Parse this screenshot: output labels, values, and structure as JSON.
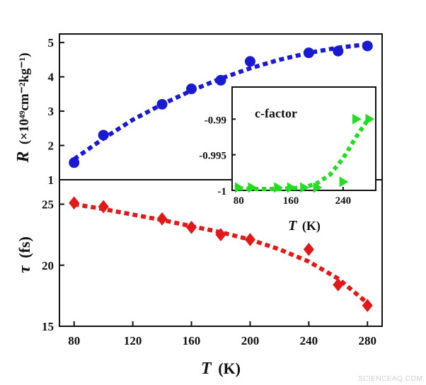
{
  "chart_data": [
    {
      "type": "scatter",
      "panel": "top",
      "ylabel_symbol": "R",
      "ylabel_unit": "(×10⁴⁹cm⁻²kg⁻¹)",
      "xlim": [
        70,
        290
      ],
      "ylim": [
        1,
        5.25
      ],
      "yticks": [
        1,
        2,
        3,
        4,
        5
      ],
      "series": [
        {
          "marker": "circle",
          "color": "#1a1ad0",
          "x": [
            80,
            100,
            140,
            160,
            180,
            200,
            240,
            260,
            280
          ],
          "y": [
            1.5,
            2.3,
            3.2,
            3.65,
            3.9,
            4.45,
            4.7,
            4.75,
            4.9
          ]
        },
        {
          "kind": "dotted fit",
          "color": "#1a1ad0",
          "x": [
            80,
            100,
            120,
            140,
            160,
            180,
            200,
            220,
            240,
            260,
            280
          ],
          "y": [
            1.6,
            2.2,
            2.75,
            3.2,
            3.6,
            3.95,
            4.25,
            4.5,
            4.7,
            4.85,
            4.95
          ]
        }
      ]
    },
    {
      "type": "scatter",
      "panel": "bottom",
      "ylabel_symbol": "τ",
      "ylabel_unit": "(fs)",
      "xlabel_symbol": "T",
      "xlabel_unit": "(K)",
      "xlim": [
        70,
        290
      ],
      "ylim": [
        15,
        27
      ],
      "xticks": [
        80,
        120,
        160,
        200,
        240,
        280
      ],
      "yticks": [
        15,
        20,
        25
      ],
      "series": [
        {
          "marker": "diamond",
          "color": "#e01a1a",
          "x": [
            80,
            100,
            140,
            160,
            180,
            200,
            240,
            260,
            280
          ],
          "y": [
            25.1,
            24.8,
            23.8,
            23.1,
            22.5,
            22.1,
            21.3,
            18.4,
            16.7
          ]
        },
        {
          "kind": "dotted fit",
          "color": "#e01a1a",
          "x": [
            80,
            100,
            120,
            140,
            160,
            180,
            200,
            220,
            240,
            260,
            280
          ],
          "y": [
            25.0,
            24.6,
            24.15,
            23.7,
            23.2,
            22.7,
            22.1,
            21.3,
            20.3,
            18.9,
            16.9
          ]
        }
      ]
    },
    {
      "type": "scatter",
      "panel": "inset",
      "title": "c-factor",
      "xlabel_symbol": "T",
      "xlabel_unit": "(K)",
      "xlim": [
        70,
        290
      ],
      "ylim": [
        -1.0,
        -0.9855
      ],
      "xticks": [
        80,
        160,
        240
      ],
      "yticks": [
        -1,
        -0.995,
        -0.99
      ],
      "ytick_labels": [
        "-1",
        "-0.995",
        "-0.99"
      ],
      "series": [
        {
          "marker": "triangle-right",
          "color": "#22dd22",
          "x": [
            80,
            100,
            140,
            160,
            180,
            200,
            240,
            260,
            280
          ],
          "y": [
            -0.9996,
            -0.9996,
            -0.9996,
            -0.9996,
            -0.9996,
            -0.9996,
            -0.9988,
            -0.99,
            -0.99
          ]
        },
        {
          "kind": "dotted fit",
          "color": "#22dd22",
          "x": [
            80,
            100,
            120,
            140,
            160,
            180,
            200,
            220,
            240,
            260,
            280
          ],
          "y": [
            -0.9997,
            -0.9998,
            -0.9998,
            -0.9998,
            -0.9997,
            -0.9996,
            -0.999,
            -0.9978,
            -0.9955,
            -0.9925,
            -0.9898
          ]
        }
      ]
    }
  ],
  "watermark": "SCIENCEAQ.COM"
}
